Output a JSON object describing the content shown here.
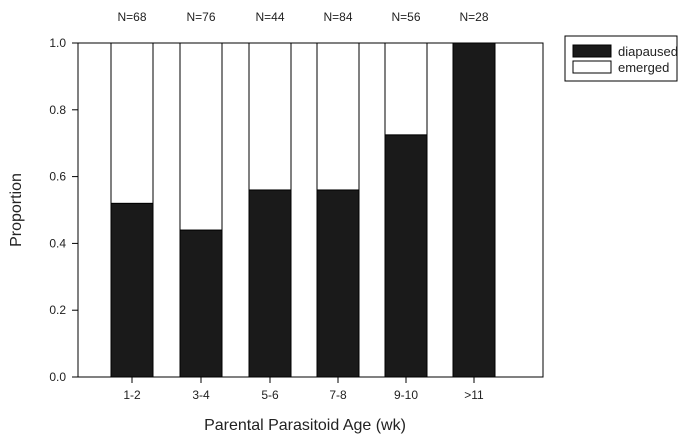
{
  "chart_data": {
    "type": "bar",
    "stacked": true,
    "categories": [
      "1-2",
      "3-4",
      "5-6",
      "7-8",
      "9-10",
      ">11"
    ],
    "series": [
      {
        "name": "diapaused",
        "values": [
          0.52,
          0.44,
          0.56,
          0.56,
          0.725,
          1.0
        ],
        "color": "#1a1a1a"
      },
      {
        "name": "emerged",
        "values": [
          0.48,
          0.56,
          0.44,
          0.44,
          0.275,
          0.0
        ],
        "color": "#ffffff"
      }
    ],
    "n_labels": [
      "N=68",
      "N=76",
      "N=44",
      "N=84",
      "N=56",
      "N=28"
    ],
    "xlabel": "Parental Parasitoid Age (wk)",
    "ylabel": "Proportion",
    "ylim": [
      0,
      1
    ],
    "yticks": [
      "0.0",
      "0.2",
      "0.4",
      "0.6",
      "0.8",
      "1.0"
    ],
    "legend": {
      "placement": "top-right outside"
    },
    "grid": false
  }
}
